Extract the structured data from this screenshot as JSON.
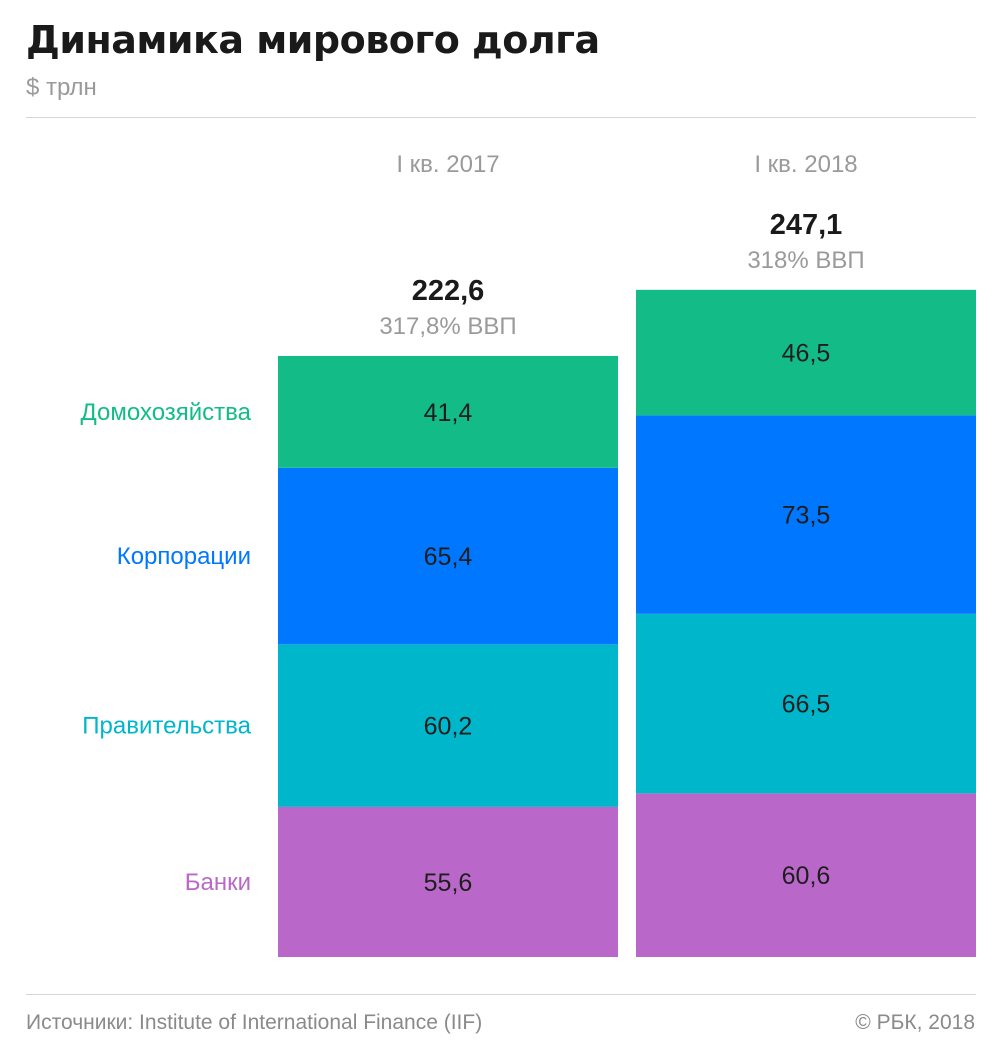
{
  "header": {
    "title": "Динамика мирового долга",
    "subtitle": "$ трлн"
  },
  "footer": {
    "source": "Источники: Institute of International Finance (IIF)",
    "copyright": "© РБК, 2018"
  },
  "chart_data": {
    "type": "bar",
    "stacked": true,
    "title": "Динамика мирового долга",
    "ylabel": "$ трлн",
    "categories": [
      "I кв. 2017",
      "I кв. 2018"
    ],
    "totals": [
      "222,6",
      "247,1"
    ],
    "total_values": [
      222.6,
      247.1
    ],
    "gdp_share": [
      "317,8% ВВП",
      "318% ВВП"
    ],
    "series": [
      {
        "name": "Банки",
        "color": "#b968c9",
        "values": [
          55.6,
          60.6
        ],
        "labels": [
          "55,6",
          "60,6"
        ]
      },
      {
        "name": "Правительства",
        "color": "#00b6cb",
        "values": [
          60.2,
          66.5
        ],
        "labels": [
          "60,2",
          "66,5"
        ]
      },
      {
        "name": "Корпорации",
        "color": "#0077ff",
        "values": [
          65.4,
          73.5
        ],
        "labels": [
          "65,4",
          "73,5"
        ]
      },
      {
        "name": "Домохозяйства",
        "color": "#13bc87",
        "values": [
          41.4,
          46.5
        ],
        "labels": [
          "41,4",
          "46,5"
        ]
      }
    ]
  }
}
